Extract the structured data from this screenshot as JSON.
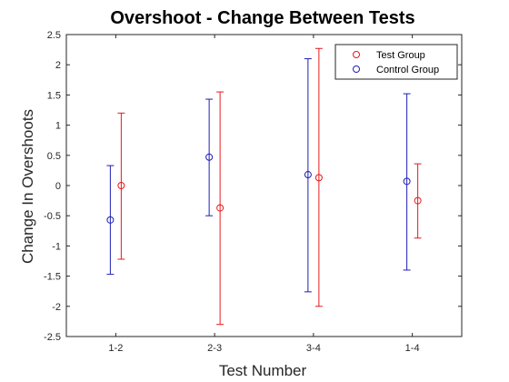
{
  "chart_data": {
    "type": "scatter",
    "title": "Overshoot - Change Between Tests",
    "xlabel": "Test Number",
    "ylabel": "Change In Overshoots",
    "categories": [
      "1-2",
      "2-3",
      "3-4",
      "1-4"
    ],
    "ylim": [
      -2.5,
      2.5
    ],
    "yticks": [
      "-2.5",
      "-2",
      "-1.5",
      "-1",
      "-0.5",
      "0",
      "0.5",
      "1",
      "1.5",
      "2",
      "2.5"
    ],
    "grid": false,
    "legend_position": "top-right",
    "series": [
      {
        "name": "Test Group",
        "color": "#e41a1c",
        "values": [
          0.0,
          -0.37,
          0.13,
          -0.25
        ],
        "lower": [
          -1.22,
          -2.3,
          -2.0,
          -0.87
        ],
        "upper": [
          1.2,
          1.55,
          2.27,
          0.36
        ]
      },
      {
        "name": "Control Group",
        "color": "#1f1fb4",
        "values": [
          -0.57,
          0.47,
          0.18,
          0.07
        ],
        "lower": [
          -1.47,
          -0.5,
          -1.76,
          -1.4
        ],
        "upper": [
          0.33,
          1.43,
          2.1,
          1.52
        ]
      }
    ]
  }
}
